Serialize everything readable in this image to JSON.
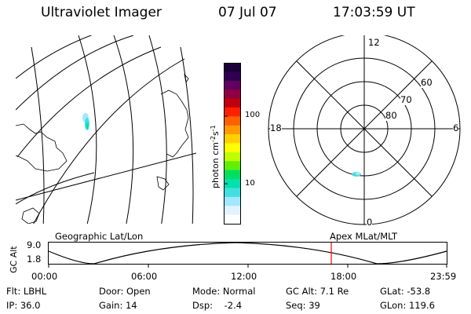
{
  "header": {
    "instrument": "Ultraviolet Imager",
    "date": "07 Jul 07",
    "time": "17:03:59 UT"
  },
  "geo_panel": {
    "label": "Geographic Lat/Lon"
  },
  "color_bar": {
    "unit_label": "photon cm",
    "unit_exp1": "-2",
    "unit_s": "s",
    "unit_exp2": "-1",
    "ticks": [
      "100",
      "10"
    ],
    "colors": [
      "#1a0038",
      "#300050",
      "#600060",
      "#900040",
      "#c00010",
      "#ff2000",
      "#ff6000",
      "#ff9a00",
      "#ffd000",
      "#ffff00",
      "#c0ff00",
      "#60f000",
      "#00e060",
      "#00e0b0",
      "#40e0e0",
      "#a0e8ff",
      "#e0f4ff",
      "#ffffff"
    ]
  },
  "polar_panel": {
    "label": "Apex MLat/MLT",
    "mlt_labels": {
      "top": "12",
      "left": "18",
      "right": "6",
      "bottom": "0"
    },
    "lat_labels": [
      "60",
      "70",
      "80"
    ]
  },
  "timeline": {
    "ylabel": "GC Alt",
    "y_top": "9.0",
    "y_bottom": "1.8",
    "x_ticks": [
      "00:00",
      "06:00",
      "12:00",
      "18:00",
      "23:59"
    ],
    "marker_time": "17:03:59",
    "marker_color": "#ff0000"
  },
  "status": {
    "flt": "Flt: LBHL",
    "ip": "IP: 36.0",
    "door": "Door: Open",
    "gain": "Gain: 14",
    "mode": "Mode: Normal",
    "dsp": "Dsp:    -2.4",
    "gcalt": "GC Alt: 7.1 Re",
    "seq": "Seq: 39",
    "glat": "GLat: -53.8",
    "glon": "GLon: 119.6"
  }
}
